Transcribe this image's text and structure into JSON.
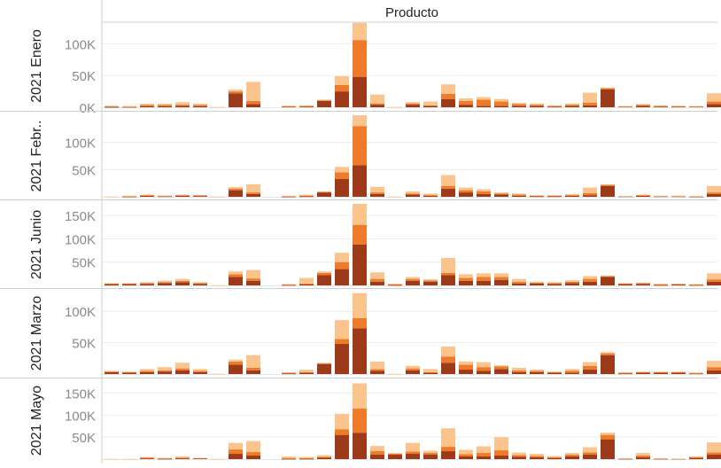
{
  "chart_data": {
    "type": "bar",
    "stacked": true,
    "column_header": "Producto",
    "n_products": 35,
    "series_colors": [
      "#9c3a1a",
      "#ef7a2a",
      "#fbc48c"
    ],
    "panels": [
      {
        "label": "2021 Enero",
        "y_max": 130000,
        "ticks": [
          {
            "v": 0,
            "t": "0K"
          },
          {
            "v": 50000,
            "t": "50K"
          },
          {
            "v": 100000,
            "t": "100K"
          }
        ],
        "values": [
          [
            500,
            1000,
            1000
          ],
          [
            500,
            500,
            1000
          ],
          [
            1500,
            2000,
            2000
          ],
          [
            1500,
            2000,
            2000
          ],
          [
            2000,
            2000,
            4000
          ],
          [
            1500,
            2000,
            2000
          ],
          [
            0,
            0,
            500
          ],
          [
            22000,
            3000,
            3000
          ],
          [
            5000,
            5000,
            30000
          ],
          [
            0,
            0,
            0
          ],
          [
            1000,
            500,
            1000
          ],
          [
            1000,
            1000,
            1000
          ],
          [
            10000,
            1000,
            1000
          ],
          [
            25000,
            10000,
            14000
          ],
          [
            48000,
            58000,
            27000
          ],
          [
            4000,
            2000,
            14000
          ],
          [
            0,
            0,
            500
          ],
          [
            4000,
            2000,
            2000
          ],
          [
            2000,
            1000,
            6000
          ],
          [
            13000,
            8000,
            15000
          ],
          [
            4000,
            6000,
            4000
          ],
          [
            2000,
            10000,
            4000
          ],
          [
            2000,
            7000,
            4000
          ],
          [
            2000,
            3000,
            2000
          ],
          [
            2000,
            2000,
            2000
          ],
          [
            1000,
            1000,
            1000
          ],
          [
            2000,
            2000,
            2000
          ],
          [
            3000,
            4000,
            16000
          ],
          [
            28000,
            2000,
            1000
          ],
          [
            1000,
            500,
            500
          ],
          [
            2000,
            2000,
            1000
          ],
          [
            1000,
            1000,
            1000
          ],
          [
            1000,
            500,
            1000
          ],
          [
            1000,
            500,
            500
          ],
          [
            5000,
            4000,
            13000
          ]
        ]
      },
      {
        "label": "2021 Febr..",
        "y_max": 150000,
        "ticks": [
          {
            "v": 50000,
            "t": "50K"
          },
          {
            "v": 100000,
            "t": "100K"
          }
        ],
        "values": [
          [
            0,
            0,
            500
          ],
          [
            500,
            500,
            1000
          ],
          [
            2000,
            1000,
            1000
          ],
          [
            1000,
            500,
            1000
          ],
          [
            2000,
            1000,
            1000
          ],
          [
            1500,
            1000,
            1000
          ],
          [
            0,
            0,
            500
          ],
          [
            12000,
            3000,
            3000
          ],
          [
            5000,
            3000,
            15000
          ],
          [
            0,
            0,
            0
          ],
          [
            500,
            500,
            1000
          ],
          [
            1000,
            1000,
            2000
          ],
          [
            8000,
            1000,
            1000
          ],
          [
            33000,
            12000,
            10000
          ],
          [
            58000,
            72000,
            20000
          ],
          [
            5000,
            3000,
            10000
          ],
          [
            0,
            0,
            500
          ],
          [
            4000,
            2000,
            4000
          ],
          [
            2000,
            1000,
            3000
          ],
          [
            15000,
            5000,
            20000
          ],
          [
            8000,
            4000,
            5000
          ],
          [
            5000,
            5000,
            4000
          ],
          [
            4000,
            2000,
            2000
          ],
          [
            2000,
            2000,
            2000
          ],
          [
            1000,
            1000,
            1000
          ],
          [
            1000,
            1000,
            1000
          ],
          [
            2000,
            1000,
            2000
          ],
          [
            3000,
            4000,
            10000
          ],
          [
            20000,
            2000,
            1000
          ],
          [
            1000,
            0,
            500
          ],
          [
            2000,
            1000,
            1000
          ],
          [
            1000,
            500,
            500
          ],
          [
            1000,
            500,
            500
          ],
          [
            500,
            500,
            500
          ],
          [
            5000,
            3000,
            12000
          ]
        ]
      },
      {
        "label": "2021 Junio",
        "y_max": 175000,
        "ticks": [
          {
            "v": 50000,
            "t": "50K"
          },
          {
            "v": 100000,
            "t": "100K"
          },
          {
            "v": 150000,
            "t": "150K"
          }
        ],
        "values": [
          [
            3000,
            1000,
            1000
          ],
          [
            3000,
            1000,
            1000
          ],
          [
            3000,
            2000,
            2000
          ],
          [
            5000,
            2000,
            3000
          ],
          [
            7000,
            3000,
            4000
          ],
          [
            3000,
            2000,
            2000
          ],
          [
            0,
            0,
            500
          ],
          [
            18000,
            6000,
            6000
          ],
          [
            10000,
            5000,
            18000
          ],
          [
            0,
            0,
            0
          ],
          [
            1000,
            1000,
            1000
          ],
          [
            2000,
            2000,
            12000
          ],
          [
            22000,
            5000,
            3000
          ],
          [
            35000,
            15000,
            20000
          ],
          [
            88000,
            42000,
            45000
          ],
          [
            8000,
            6000,
            14000
          ],
          [
            1000,
            1000,
            2000
          ],
          [
            10000,
            4000,
            4000
          ],
          [
            8000,
            3000,
            2000
          ],
          [
            22000,
            5000,
            32000
          ],
          [
            10000,
            6000,
            8000
          ],
          [
            10000,
            8000,
            8000
          ],
          [
            12000,
            6000,
            8000
          ],
          [
            4000,
            4000,
            6000
          ],
          [
            4000,
            2000,
            2000
          ],
          [
            3000,
            2000,
            2000
          ],
          [
            5000,
            3000,
            3000
          ],
          [
            8000,
            6000,
            6000
          ],
          [
            18000,
            2000,
            1000
          ],
          [
            3000,
            1000,
            1000
          ],
          [
            3000,
            2000,
            1000
          ],
          [
            1000,
            1000,
            2000
          ],
          [
            2000,
            1000,
            1000
          ],
          [
            1000,
            1000,
            1000
          ],
          [
            8000,
            5000,
            13000
          ]
        ]
      },
      {
        "label": "2021 Marzo",
        "y_max": 130000,
        "ticks": [
          {
            "v": 50000,
            "t": "50K"
          },
          {
            "v": 100000,
            "t": "100K"
          }
        ],
        "values": [
          [
            3000,
            1000,
            1000
          ],
          [
            2000,
            1000,
            1000
          ],
          [
            3000,
            2000,
            3000
          ],
          [
            4000,
            2000,
            5000
          ],
          [
            6000,
            3000,
            9000
          ],
          [
            3000,
            2000,
            3000
          ],
          [
            0,
            0,
            500
          ],
          [
            15000,
            5000,
            3000
          ],
          [
            6000,
            4000,
            20000
          ],
          [
            0,
            0,
            0
          ],
          [
            1000,
            1000,
            1000
          ],
          [
            2000,
            1000,
            4000
          ],
          [
            16000,
            1000,
            1000
          ],
          [
            48000,
            8000,
            30000
          ],
          [
            73000,
            16000,
            40000
          ],
          [
            5000,
            3000,
            12000
          ],
          [
            0,
            0,
            500
          ],
          [
            6000,
            3000,
            4000
          ],
          [
            2000,
            1000,
            5000
          ],
          [
            18000,
            10000,
            16000
          ],
          [
            7000,
            8000,
            5000
          ],
          [
            5000,
            6000,
            8000
          ],
          [
            8000,
            4000,
            2000
          ],
          [
            3000,
            3000,
            4000
          ],
          [
            3000,
            2000,
            2000
          ],
          [
            2000,
            1000,
            1000
          ],
          [
            2000,
            3000,
            3000
          ],
          [
            7000,
            6000,
            6000
          ],
          [
            30000,
            3000,
            2000
          ],
          [
            1000,
            1000,
            1000
          ],
          [
            2000,
            1000,
            1000
          ],
          [
            2000,
            1000,
            1000
          ],
          [
            2000,
            1000,
            1000
          ],
          [
            1000,
            500,
            1000
          ],
          [
            6000,
            5000,
            10000
          ]
        ]
      },
      {
        "label": "2021 Mayo",
        "y_max": 175000,
        "ticks": [
          {
            "v": 50000,
            "t": "50K"
          },
          {
            "v": 100000,
            "t": "100K"
          },
          {
            "v": 150000,
            "t": "150K"
          }
        ],
        "values": [
          [
            0,
            0,
            500
          ],
          [
            0,
            0,
            500
          ],
          [
            2000,
            1000,
            2000
          ],
          [
            1000,
            0,
            2000
          ],
          [
            2000,
            1000,
            3000
          ],
          [
            2000,
            0,
            1000
          ],
          [
            0,
            0,
            500
          ],
          [
            12000,
            10000,
            15000
          ],
          [
            8000,
            8000,
            25000
          ],
          [
            0,
            0,
            0
          ],
          [
            1000,
            1000,
            4000
          ],
          [
            1000,
            1000,
            3000
          ],
          [
            3000,
            2000,
            4000
          ],
          [
            55000,
            13000,
            35000
          ],
          [
            60000,
            55000,
            57000
          ],
          [
            10000,
            8000,
            12000
          ],
          [
            10000,
            2000,
            2000
          ],
          [
            12000,
            5000,
            20000
          ],
          [
            10000,
            4000,
            5000
          ],
          [
            18000,
            10000,
            42000
          ],
          [
            6000,
            5000,
            10000
          ],
          [
            6000,
            8000,
            15000
          ],
          [
            8000,
            12000,
            30000
          ],
          [
            5000,
            4000,
            6000
          ],
          [
            4000,
            3000,
            5000
          ],
          [
            2000,
            2000,
            3000
          ],
          [
            6000,
            4000,
            4000
          ],
          [
            10000,
            5000,
            12000
          ],
          [
            45000,
            10000,
            5000
          ],
          [
            1000,
            0,
            1000
          ],
          [
            4000,
            4000,
            6000
          ],
          [
            1000,
            0,
            1000
          ],
          [
            1000,
            0,
            500
          ],
          [
            2000,
            3000,
            1000
          ],
          [
            10000,
            5000,
            23000
          ]
        ]
      }
    ]
  }
}
